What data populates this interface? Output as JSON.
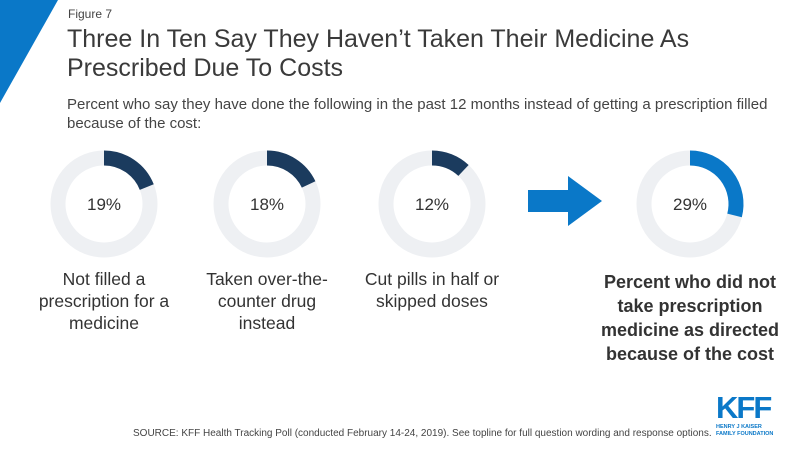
{
  "figure_label": "Figure 7",
  "title": "Three In Ten Say They Haven’t Taken Their Medicine As Prescribed Due To Costs",
  "subtitle": "Percent who say they have done the following in the past 12 months instead of getting a prescription filled because of the cost:",
  "source": "SOURCE: KFF Health Tracking Poll (conducted February 14-24, 2019). See topline for full question wording and response options.",
  "logo": {
    "mark": "KFF",
    "line1": "HENRY J KAISER",
    "line2": "FAMILY FOUNDATION"
  },
  "colors": {
    "dark": "#1b3b5e",
    "accent": "#0a78c8",
    "track": "#eef0f3"
  },
  "chart_data": {
    "type": "donut",
    "unit": "%",
    "items": [
      {
        "label": "Not filled a prescription for a medicine",
        "value": 19,
        "display": "19%",
        "color": "#1b3b5e"
      },
      {
        "label": "Taken over-the-counter drug instead",
        "value": 18,
        "display": "18%",
        "color": "#1b3b5e"
      },
      {
        "label": "Cut pills in half or skipped doses",
        "value": 12,
        "display": "12%",
        "color": "#1b3b5e"
      },
      {
        "label": "Percent who did not take prescription medicine as directed because of the cost",
        "value": 29,
        "display": "29%",
        "color": "#0a78c8",
        "emphasis": true
      }
    ],
    "arrow_icon": "right-arrow-icon"
  }
}
